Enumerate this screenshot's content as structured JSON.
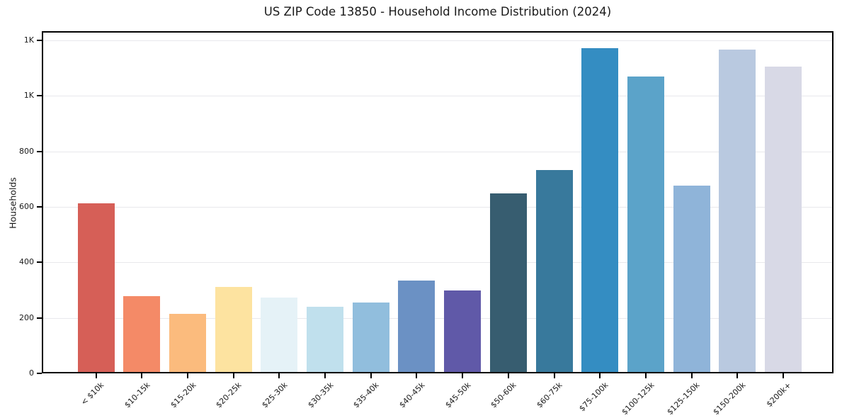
{
  "chart_data": {
    "type": "bar",
    "title": "US ZIP Code 13850 - Household Income Distribution (2024)",
    "xlabel": "",
    "ylabel": "Households",
    "categories": [
      "< $10k",
      "$10-15k",
      "$15-20k",
      "$20-25k",
      "$25-30k",
      "$30-35k",
      "$35-40k",
      "$40-45k",
      "$45-50k",
      "$50-60k",
      "$60-75k",
      "$75-100k",
      "$100-125k",
      "$125-150k",
      "$150-200k",
      "$200k+"
    ],
    "values": [
      613,
      278,
      214,
      311,
      273,
      239,
      255,
      334,
      299,
      648,
      733,
      1172,
      1069,
      676,
      1167,
      1105
    ],
    "bar_colors": [
      "#d65f57",
      "#f48a67",
      "#fbbb7d",
      "#fde3a0",
      "#e5f2f7",
      "#c0e0ed",
      "#91bedd",
      "#6b91c4",
      "#6059a8",
      "#375d70",
      "#38799c",
      "#348dc2",
      "#5ba3c9",
      "#8fb4d9",
      "#b9c9e0",
      "#d8d9e6"
    ],
    "yticks": [
      {
        "value": 0,
        "label": "0"
      },
      {
        "value": 200,
        "label": "200"
      },
      {
        "value": 400,
        "label": "400"
      },
      {
        "value": 600,
        "label": "600"
      },
      {
        "value": 800,
        "label": "800"
      },
      {
        "value": 1000,
        "label": "1K"
      },
      {
        "value": 1200,
        "label": "1K"
      }
    ],
    "ylim": [
      0,
      1233
    ],
    "grid": "horizontal",
    "grid_color": "#e8e8ec",
    "spine_color": "#000000",
    "text_color": "#1a1a1a",
    "background": "#ffffff",
    "x_tick_rotation_deg": 45
  }
}
